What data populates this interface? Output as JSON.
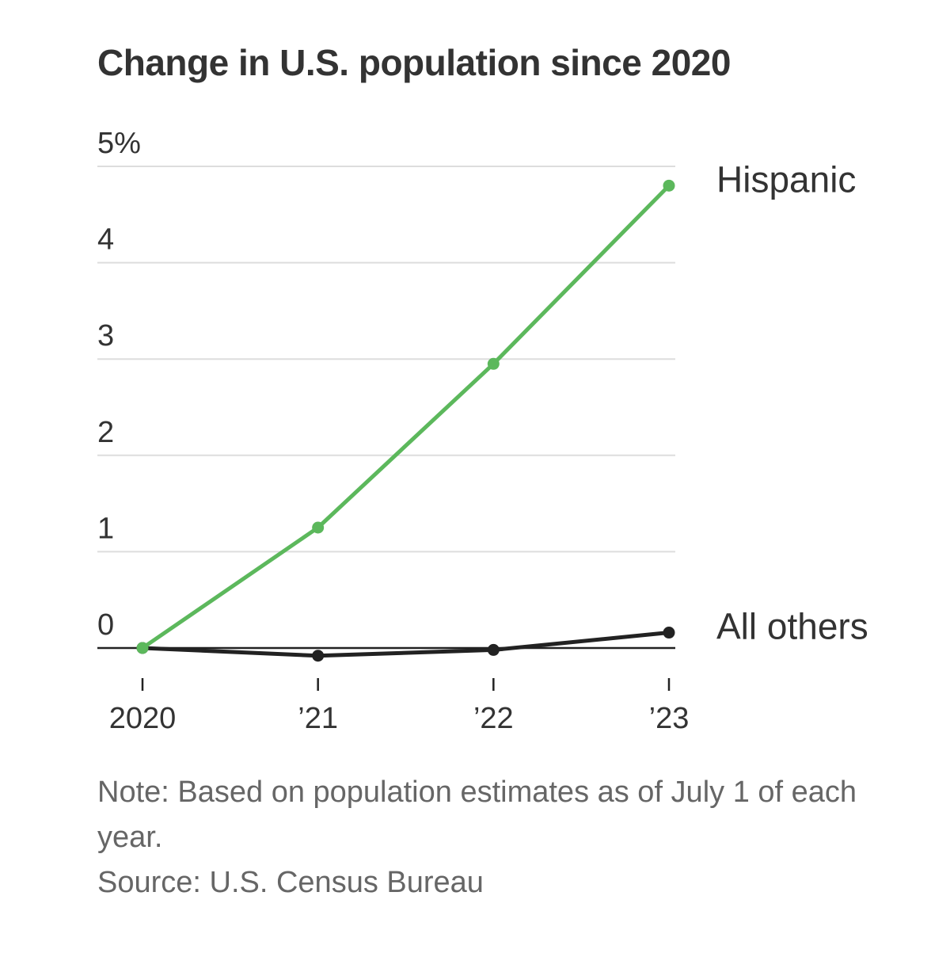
{
  "chart_data": {
    "type": "line",
    "title": "Change in U.S. population since 2020",
    "x": [
      2020,
      2021,
      2022,
      2023
    ],
    "x_tick_labels": [
      "2020",
      "’21",
      "’22",
      "’23"
    ],
    "y_tick_labels": [
      "0",
      "1",
      "2",
      "3",
      "4",
      "5%"
    ],
    "y_ticks": [
      0,
      1,
      2,
      3,
      4,
      5
    ],
    "ylim": [
      0,
      5
    ],
    "grid": true,
    "legend": "direct labels at line ends (right)",
    "series": [
      {
        "name": "Hispanic",
        "values": [
          0,
          1.25,
          2.95,
          4.8
        ],
        "color": "#5cb85c"
      },
      {
        "name": "All others",
        "values": [
          0,
          -0.08,
          -0.02,
          0.16
        ],
        "color": "#222222"
      }
    ]
  },
  "notes": {
    "note": "Note: Based on population estimates as of July 1 of each year.",
    "source": "Source: U.S. Census Bureau"
  },
  "colors": {
    "grid": "#dddddd",
    "axis": "#222222",
    "text": "#333333",
    "footnote": "#666666"
  }
}
